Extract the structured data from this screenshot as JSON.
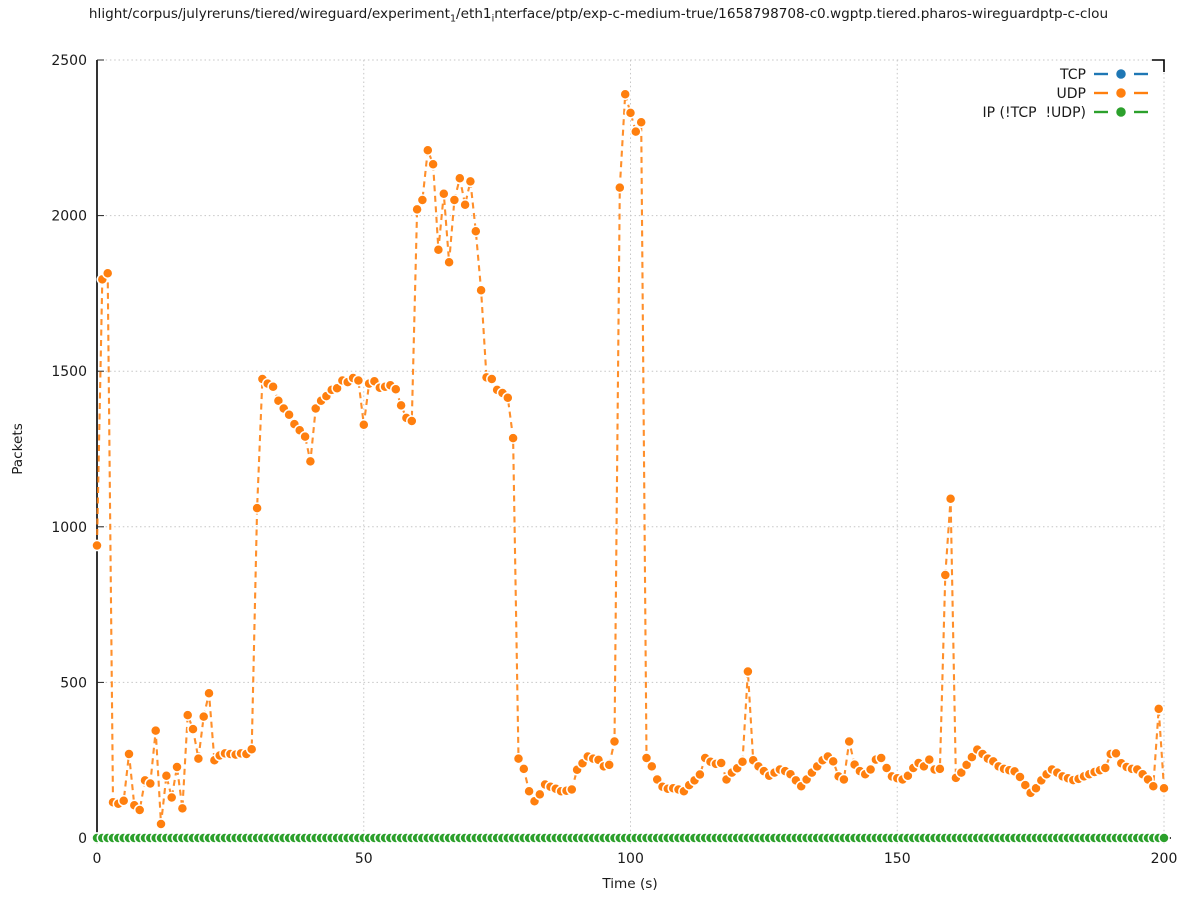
{
  "title_segments": [
    {
      "t": "hlight/corpus/julyreruns/tiered/wireguard/experiment"
    },
    {
      "sub": "1"
    },
    {
      "t": "/eth1"
    },
    {
      "sub": "i"
    },
    {
      "t": "nterface/ptp/exp-c-medium-true/1658798708-c0.wgptp.tiered.pharos-wireguardptp-c-clou"
    }
  ],
  "chart_data": {
    "type": "line",
    "xlabel": "Time (s)",
    "ylabel": "Packets",
    "xlim": [
      0,
      200
    ],
    "ylim": [
      0,
      2500
    ],
    "xticks": [
      0,
      50,
      100,
      150,
      200
    ],
    "yticks": [
      0,
      500,
      1000,
      1500,
      2000,
      2500
    ],
    "grid": true,
    "line_style": "dashed-with-circle-markers",
    "legend_position": "upper right",
    "legend": [
      {
        "label": "TCP",
        "color": "#1f77b4"
      },
      {
        "label": "UDP",
        "color": "#ff7f0e"
      },
      {
        "label": "IP (!TCP  !UDP)",
        "color": "#2ca02c"
      }
    ],
    "series": [
      {
        "name": "TCP",
        "color": "#1f77b4",
        "t_start": 0,
        "t_end": 200,
        "t_step": 1,
        "constant_value": 0
      },
      {
        "name": "UDP",
        "color": "#ff7f0e",
        "t_start": 0,
        "t_step": 1,
        "values": [
          940,
          1795,
          1815,
          115,
          110,
          120,
          270,
          105,
          90,
          185,
          175,
          345,
          45,
          200,
          130,
          228,
          95,
          395,
          350,
          255,
          390,
          465,
          250,
          265,
          272,
          270,
          268,
          272,
          270,
          285,
          1060,
          1475,
          1460,
          1450,
          1405,
          1380,
          1360,
          1330,
          1310,
          1290,
          1210,
          1380,
          1405,
          1420,
          1440,
          1445,
          1470,
          1465,
          1478,
          1470,
          1328,
          1460,
          1468,
          1447,
          1450,
          1455,
          1442,
          1390,
          1350,
          1340,
          2020,
          2050,
          2210,
          2165,
          1890,
          2070,
          1850,
          2050,
          2120,
          2035,
          2110,
          1950,
          1760,
          1480,
          1475,
          1440,
          1430,
          1415,
          1285,
          255,
          222,
          150,
          118,
          140,
          172,
          165,
          158,
          150,
          152,
          156,
          219,
          240,
          262,
          255,
          251,
          230,
          235,
          310,
          2090,
          2390,
          2330,
          2270,
          2300,
          257,
          230,
          188,
          165,
          158,
          160,
          156,
          150,
          170,
          185,
          204,
          257,
          245,
          238,
          241,
          188,
          210,
          224,
          245,
          535,
          250,
          230,
          215,
          200,
          210,
          220,
          215,
          205,
          185,
          166,
          188,
          210,
          230,
          250,
          262,
          246,
          198,
          188,
          310,
          236,
          215,
          205,
          220,
          252,
          257,
          225,
          198,
          192,
          188,
          200,
          225,
          241,
          230,
          252,
          220,
          222,
          845,
          1090,
          193,
          210,
          235,
          260,
          284,
          270,
          255,
          246,
          230,
          222,
          218,
          214,
          196,
          170,
          145,
          160,
          185,
          205,
          220,
          210,
          198,
          192,
          186,
          190,
          198,
          205,
          212,
          218,
          225,
          270,
          272,
          240,
          228,
          222,
          220,
          205,
          188,
          166,
          415,
          160
        ]
      },
      {
        "name": "IP (!TCP  !UDP)",
        "color": "#2ca02c",
        "t_start": 0,
        "t_end": 200,
        "t_step": 1,
        "constant_value": 0
      }
    ]
  }
}
